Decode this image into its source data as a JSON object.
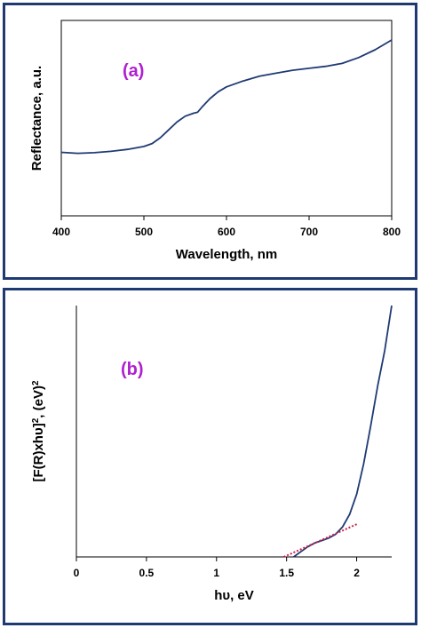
{
  "chart_data": [
    {
      "type": "line",
      "panel_label": "(a)",
      "xlabel": "Wavelength, nm",
      "ylabel": "Reflectance, a.u.",
      "xlim": [
        400,
        800
      ],
      "ylim": [
        0,
        1
      ],
      "xticks": [
        "400",
        "500",
        "600",
        "700",
        "800"
      ],
      "xtick_values": [
        400,
        500,
        600,
        700,
        800
      ],
      "y_tick_labels_shown": false,
      "series_color": "#1f3a73",
      "series": [
        {
          "x": [
            400,
            420,
            440,
            460,
            480,
            500,
            510,
            520,
            530,
            540,
            550,
            560,
            565,
            570,
            580,
            590,
            600,
            620,
            640,
            660,
            680,
            700,
            720,
            740,
            760,
            780,
            800
          ],
          "values": [
            0.325,
            0.32,
            0.323,
            0.33,
            0.34,
            0.355,
            0.37,
            0.4,
            0.44,
            0.48,
            0.51,
            0.525,
            0.53,
            0.555,
            0.6,
            0.635,
            0.66,
            0.69,
            0.715,
            0.73,
            0.745,
            0.755,
            0.765,
            0.78,
            0.81,
            0.85,
            0.9
          ]
        }
      ]
    },
    {
      "type": "line",
      "panel_label": "(b)",
      "xlabel": "hυ, eV",
      "ylabel_parts": [
        "[F(R)xhυ]",
        "2",
        ", (eV)",
        "2"
      ],
      "xlim": [
        0,
        2.25
      ],
      "ylim": [
        0,
        1
      ],
      "xticks": [
        "0",
        "0.5",
        "1",
        "1.5",
        "2"
      ],
      "xtick_values": [
        0,
        0.5,
        1,
        1.5,
        2
      ],
      "y_tick_labels_shown": false,
      "series_color": "#1f3a73",
      "fit_color": "#d0204a",
      "series": [
        {
          "x": [
            1.55,
            1.6,
            1.65,
            1.7,
            1.75,
            1.8,
            1.85,
            1.9,
            1.95,
            2.0,
            2.05,
            2.1,
            2.15,
            2.2,
            2.25
          ],
          "values": [
            0.0,
            0.02,
            0.04,
            0.055,
            0.065,
            0.075,
            0.09,
            0.12,
            0.17,
            0.25,
            0.37,
            0.52,
            0.68,
            0.82,
            1.0
          ]
        },
        {
          "x": [
            1.48,
            2.0
          ],
          "values": [
            0.0,
            0.13
          ]
        }
      ]
    }
  ]
}
